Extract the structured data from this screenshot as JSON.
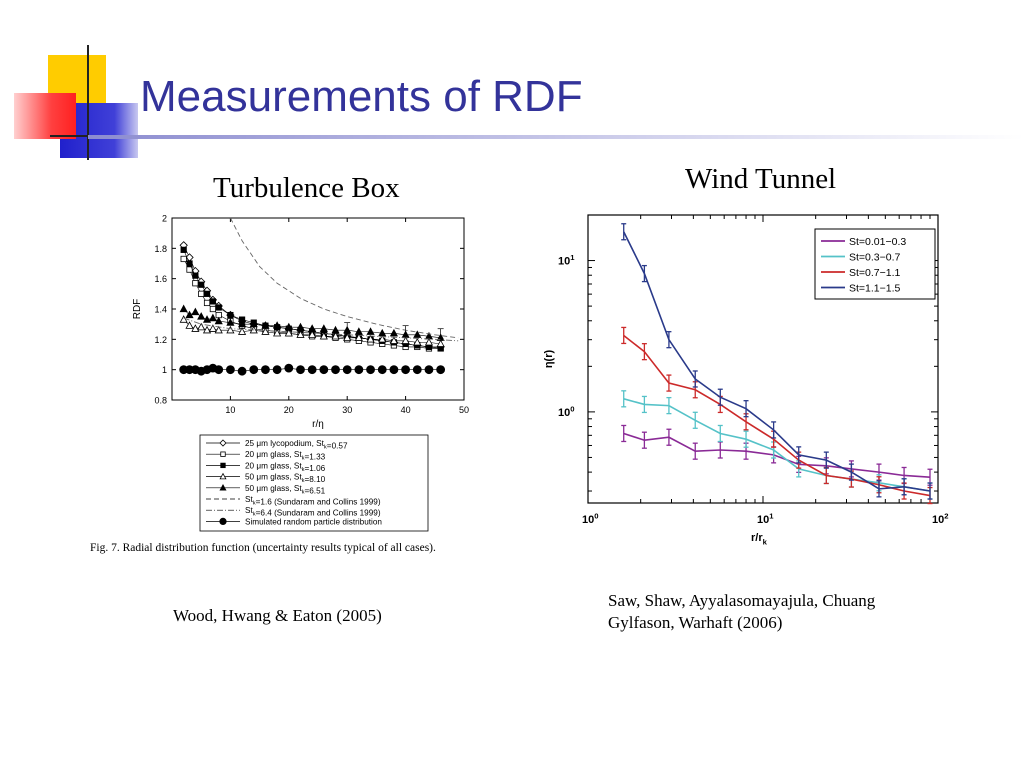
{
  "slide": {
    "title": "Measurements of RDF",
    "colors": {
      "title": "#33339a",
      "deco_yellow": "#ffcc00",
      "deco_red": "#ff3030",
      "deco_blue": "#2222cc"
    }
  },
  "left_panel": {
    "heading": "Turbulence Box",
    "caption": "Fig. 7.  Radial distribution function (uncertainty results typical of all cases).",
    "credit": "Wood, Hwang & Eaton (2005)"
  },
  "right_panel": {
    "heading": "Wind Tunnel",
    "credit_line1": "Saw, Shaw, Ayyalasomayajula, Chuang",
    "credit_line2": "Gylfason, Warhaft (2006)"
  },
  "chart_data": [
    {
      "type": "scatter",
      "title": "",
      "xlabel": "r/η",
      "ylabel": "RDF",
      "xlim": [
        0,
        50
      ],
      "ylim": [
        0.8,
        2
      ],
      "xticks": [
        10,
        20,
        30,
        40,
        50
      ],
      "yticks": [
        0.8,
        1,
        1.2,
        1.4,
        1.6,
        1.8,
        2
      ],
      "legend_position": "below",
      "series": [
        {
          "name": "25 μm lycopodium, St_k=0.57",
          "marker": "diamond-open",
          "x": [
            2,
            3,
            4,
            5,
            6,
            7,
            8,
            10,
            12,
            14,
            16,
            18,
            20,
            22,
            24,
            26,
            28,
            30,
            32,
            34,
            36,
            38,
            40,
            42,
            44,
            46
          ],
          "y": [
            1.82,
            1.74,
            1.65,
            1.58,
            1.52,
            1.46,
            1.42,
            1.36,
            1.32,
            1.3,
            1.29,
            1.28,
            1.27,
            1.26,
            1.25,
            1.24,
            1.23,
            1.22,
            1.21,
            1.2,
            1.19,
            1.18,
            1.17,
            1.16,
            1.15,
            1.15
          ]
        },
        {
          "name": "20 μm glass, St_k=1.33",
          "marker": "square-open",
          "x": [
            2,
            3,
            4,
            5,
            6,
            7,
            8,
            10,
            12,
            14,
            16,
            18,
            20,
            22,
            24,
            26,
            28,
            30,
            32,
            34,
            36,
            38,
            40,
            42,
            44,
            46
          ],
          "y": [
            1.73,
            1.66,
            1.57,
            1.5,
            1.44,
            1.4,
            1.36,
            1.32,
            1.29,
            1.27,
            1.26,
            1.25,
            1.24,
            1.23,
            1.22,
            1.22,
            1.21,
            1.2,
            1.19,
            1.18,
            1.17,
            1.16,
            1.15,
            1.15,
            1.14,
            1.14
          ]
        },
        {
          "name": "20 μm glass, St_k=1.06",
          "marker": "square-filled",
          "x": [
            2,
            3,
            4,
            5,
            6,
            7,
            8,
            10,
            12,
            14,
            16,
            18,
            20,
            22,
            24,
            26,
            28,
            30,
            32,
            34,
            36,
            38,
            40,
            42,
            44,
            46
          ],
          "y": [
            1.79,
            1.7,
            1.62,
            1.56,
            1.5,
            1.45,
            1.41,
            1.36,
            1.33,
            1.31,
            1.29,
            1.28,
            1.27,
            1.26,
            1.25,
            1.24,
            1.23,
            1.22,
            1.21,
            1.2,
            1.19,
            1.18,
            1.17,
            1.16,
            1.15,
            1.14
          ]
        },
        {
          "name": "50 μm glass, St_k=8.10",
          "marker": "triangle-open",
          "x": [
            2,
            3,
            4,
            5,
            6,
            7,
            8,
            10,
            12,
            14,
            16,
            18,
            20,
            22,
            24,
            26,
            28,
            30,
            32,
            34,
            36,
            38,
            40,
            42,
            44,
            46
          ],
          "y": [
            1.33,
            1.29,
            1.27,
            1.28,
            1.26,
            1.27,
            1.26,
            1.26,
            1.25,
            1.26,
            1.25,
            1.24,
            1.24,
            1.23,
            1.23,
            1.22,
            1.22,
            1.21,
            1.21,
            1.2,
            1.2,
            1.19,
            1.19,
            1.18,
            1.18,
            1.17
          ]
        },
        {
          "name": "50 μm glass, St_k=6.51",
          "marker": "triangle-filled",
          "x": [
            2,
            3,
            4,
            5,
            6,
            7,
            8,
            10,
            12,
            14,
            16,
            18,
            20,
            22,
            24,
            26,
            28,
            30,
            32,
            34,
            36,
            38,
            40,
            42,
            44,
            46
          ],
          "y": [
            1.4,
            1.36,
            1.38,
            1.35,
            1.33,
            1.34,
            1.32,
            1.31,
            1.3,
            1.3,
            1.29,
            1.29,
            1.28,
            1.28,
            1.27,
            1.27,
            1.26,
            1.26,
            1.25,
            1.25,
            1.24,
            1.24,
            1.23,
            1.23,
            1.22,
            1.21
          ]
        },
        {
          "name": "St_k=1.6 (Sundaram and Collins 1999)",
          "marker": "line-dashed",
          "x": [
            10,
            12,
            15,
            18,
            22,
            26,
            30,
            35,
            40,
            45,
            49
          ],
          "y": [
            2.0,
            1.85,
            1.68,
            1.57,
            1.47,
            1.4,
            1.35,
            1.3,
            1.26,
            1.23,
            1.21
          ]
        },
        {
          "name": "St_k=6.4 (Sundaram and Collins 1999)",
          "marker": "line-dashdot",
          "x": [
            2,
            5,
            10,
            15,
            20,
            25,
            30,
            35,
            40,
            45,
            49
          ],
          "y": [
            1.34,
            1.3,
            1.27,
            1.26,
            1.25,
            1.24,
            1.23,
            1.22,
            1.21,
            1.2,
            1.19
          ]
        },
        {
          "name": "Simulated random particle distribution",
          "marker": "circle-filled",
          "x": [
            2,
            3,
            4,
            5,
            6,
            7,
            8,
            10,
            12,
            14,
            16,
            18,
            20,
            22,
            24,
            26,
            28,
            30,
            32,
            34,
            36,
            38,
            40,
            42,
            44,
            46
          ],
          "y": [
            1.0,
            1.0,
            1.0,
            0.99,
            1.0,
            1.01,
            1.0,
            1.0,
            0.99,
            1.0,
            1.0,
            1.0,
            1.01,
            1.0,
            1.0,
            1.0,
            1.0,
            1.0,
            1.0,
            1.0,
            1.0,
            1.0,
            1.0,
            1.0,
            1.0,
            1.0
          ]
        }
      ]
    },
    {
      "type": "line",
      "title": "",
      "xlabel": "r/r_k",
      "ylabel": "η(r)",
      "x_scale": "log",
      "y_scale": "log",
      "xlim": [
        1,
        100
      ],
      "ylim": [
        0.25,
        20
      ],
      "xtick_labels": [
        "10^0",
        "10^1",
        "10^2"
      ],
      "ytick_labels": [
        "10^0",
        "10^1"
      ],
      "legend_position": "top-right",
      "series": [
        {
          "name": "St=0.01−0.3",
          "color": "#8a2a96",
          "x": [
            1.6,
            2.1,
            2.9,
            4.1,
            5.7,
            8,
            11.5,
            16,
            23,
            32,
            46,
            64,
            90
          ],
          "y": [
            0.72,
            0.65,
            0.68,
            0.55,
            0.56,
            0.55,
            0.52,
            0.45,
            0.44,
            0.42,
            0.4,
            0.38,
            0.37
          ]
        },
        {
          "name": "St=0.3−0.7",
          "color": "#55c2c8",
          "x": [
            1.6,
            2.1,
            2.9,
            4.1,
            5.7,
            8,
            11.5,
            16,
            23,
            32,
            46,
            64,
            90
          ],
          "y": [
            1.22,
            1.12,
            1.1,
            0.88,
            0.72,
            0.66,
            0.56,
            0.42,
            0.38,
            0.36,
            0.34,
            0.32,
            0.3
          ]
        },
        {
          "name": "St=0.7−1.1",
          "color": "#cc2a2a",
          "x": [
            1.6,
            2.1,
            2.9,
            4.1,
            5.7,
            8,
            11.5,
            16,
            23,
            32,
            46,
            64,
            90
          ],
          "y": [
            3.2,
            2.5,
            1.55,
            1.4,
            1.12,
            0.86,
            0.66,
            0.48,
            0.38,
            0.36,
            0.33,
            0.3,
            0.28
          ]
        },
        {
          "name": "St=1.1−1.5",
          "color": "#2a3a8a",
          "x": [
            1.6,
            2.1,
            2.9,
            4.1,
            5.7,
            8,
            11.5,
            16,
            23,
            32,
            46,
            64,
            90
          ],
          "y": [
            15.5,
            8.2,
            3.0,
            1.65,
            1.25,
            1.05,
            0.76,
            0.52,
            0.48,
            0.4,
            0.31,
            0.32,
            0.3
          ]
        }
      ]
    }
  ]
}
